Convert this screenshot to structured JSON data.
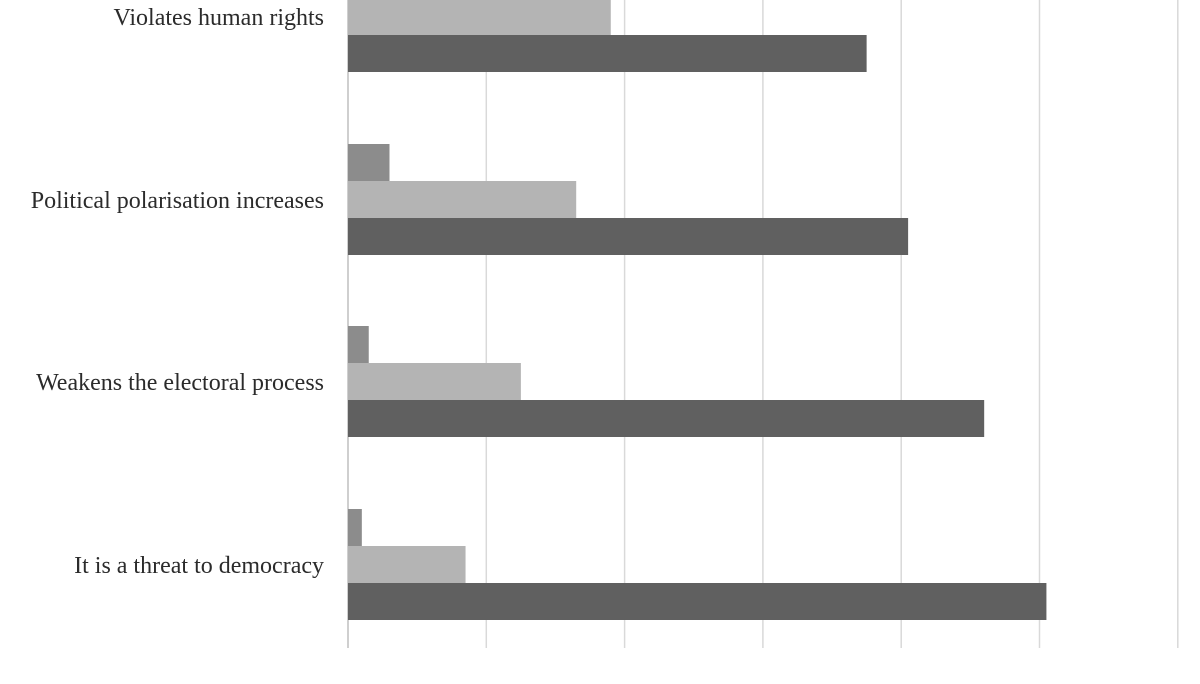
{
  "chart_data": {
    "type": "bar",
    "orientation": "horizontal",
    "categories": [
      "Violates human rights",
      "Political polarisation increases",
      "Weakens the electoral process",
      "It is a threat to democracy"
    ],
    "series": [
      {
        "color": "#8c8c8c",
        "values": [
          null,
          6,
          3,
          2
        ]
      },
      {
        "color": "#b4b4b4",
        "values": [
          38,
          33,
          25,
          17
        ]
      },
      {
        "color": "#606060",
        "values": [
          75,
          81,
          92,
          101
        ]
      }
    ],
    "xlim": [
      0,
      120
    ],
    "xticks": [
      "0",
      "20",
      "40",
      "60",
      "80",
      "100",
      "120"
    ],
    "grid": true,
    "title": "",
    "xlabel": "",
    "ylabel": ""
  }
}
